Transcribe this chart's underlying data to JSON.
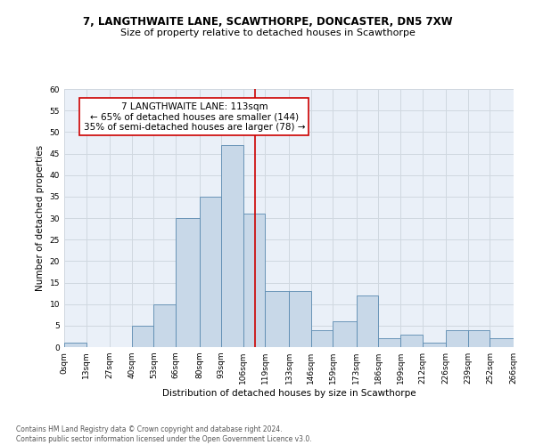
{
  "title_line1": "7, LANGTHWAITE LANE, SCAWTHORPE, DONCASTER, DN5 7XW",
  "title_line2": "Size of property relative to detached houses in Scawthorpe",
  "xlabel": "Distribution of detached houses by size in Scawthorpe",
  "ylabel": "Number of detached properties",
  "bar_values": [
    1,
    0,
    0,
    5,
    10,
    30,
    35,
    47,
    31,
    13,
    13,
    4,
    6,
    12,
    2,
    3,
    1,
    4,
    4,
    2
  ],
  "bin_edges": [
    0,
    13,
    27,
    40,
    53,
    66,
    80,
    93,
    106,
    119,
    133,
    146,
    159,
    173,
    186,
    199,
    212,
    226,
    239,
    252,
    266
  ],
  "tick_labels": [
    "0sqm",
    "13sqm",
    "27sqm",
    "40sqm",
    "53sqm",
    "66sqm",
    "80sqm",
    "93sqm",
    "106sqm",
    "119sqm",
    "133sqm",
    "146sqm",
    "159sqm",
    "173sqm",
    "186sqm",
    "199sqm",
    "212sqm",
    "226sqm",
    "239sqm",
    "252sqm",
    "266sqm"
  ],
  "bar_color": "#c8d8e8",
  "bar_edge_color": "#5a8ab0",
  "property_size": 113,
  "vline_color": "#cc0000",
  "annotation_text": "7 LANGTHWAITE LANE: 113sqm\n← 65% of detached houses are smaller (144)\n35% of semi-detached houses are larger (78) →",
  "annotation_box_color": "#ffffff",
  "annotation_box_edge_color": "#cc0000",
  "ylim": [
    0,
    60
  ],
  "yticks": [
    0,
    5,
    10,
    15,
    20,
    25,
    30,
    35,
    40,
    45,
    50,
    55,
    60
  ],
  "grid_color": "#d0d8e0",
  "bg_color": "#eaf0f8",
  "footnote": "Contains HM Land Registry data © Crown copyright and database right 2024.\nContains public sector information licensed under the Open Government Licence v3.0.",
  "title_fontsize": 8.5,
  "subtitle_fontsize": 8,
  "axis_label_fontsize": 7.5,
  "tick_fontsize": 6.5,
  "annotation_fontsize": 7.5
}
